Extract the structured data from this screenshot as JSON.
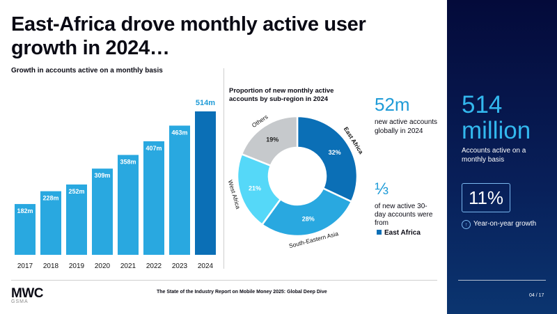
{
  "title": "East-Africa drove monthly active user growth in 2024…",
  "subtitle": "Growth in accounts active on a monthly basis",
  "chart_data": [
    {
      "type": "bar",
      "title": "Growth in accounts active on a monthly basis",
      "categories": [
        "2017",
        "2018",
        "2019",
        "2020",
        "2021",
        "2022",
        "2023",
        "2024"
      ],
      "values": [
        182,
        228,
        252,
        309,
        358,
        407,
        463,
        514
      ],
      "data_labels": [
        "182m",
        "228m",
        "252m",
        "309m",
        "358m",
        "407m",
        "463m",
        "514m"
      ],
      "unit": "m",
      "ylim": [
        0,
        514
      ],
      "colors": [
        "#29a8e0",
        "#29a8e0",
        "#29a8e0",
        "#29a8e0",
        "#29a8e0",
        "#29a8e0",
        "#29a8e0",
        "#0b6fb6"
      ],
      "highlight_label_color": "#1e9bd7"
    },
    {
      "type": "pie",
      "title": "Proportion of new monthly active accounts by sub-region in 2024",
      "slices": [
        {
          "name": "East Africa",
          "value": 32,
          "label": "32%",
          "color": "#0b6fb6"
        },
        {
          "name": "South-Eastern Asia",
          "value": 28,
          "label": "28%",
          "color": "#29a8e0"
        },
        {
          "name": "West Africa",
          "value": 21,
          "label": "21%",
          "color": "#55d8f8"
        },
        {
          "name": "Others",
          "value": 19,
          "label": "19%",
          "color": "#c6c9cc"
        }
      ]
    }
  ],
  "pie_title": "Proportion of new monthly active accounts by sub-region in 2024",
  "stat1": {
    "value": "52m",
    "label": "new active accounts globally in 2024"
  },
  "stat2": {
    "value": "⅓",
    "label": "of new active 30-day accounts were from",
    "legend": "East Africa"
  },
  "panel": {
    "big_value": "514 million",
    "label": "Accounts active on a monthly basis",
    "growth_value": "11%",
    "growth_label": "Year-on-year growth",
    "page": "04 / 17"
  },
  "footer": "The State of the Industry Report on Mobile Money 2025: Global Deep Dive",
  "logo": {
    "mwc": "MWC",
    "gsma": "GSMA"
  },
  "colors": {
    "accent": "#1e9bd7",
    "dark_blue": "#0b6fb6",
    "panel_bg": "#040a3a"
  }
}
